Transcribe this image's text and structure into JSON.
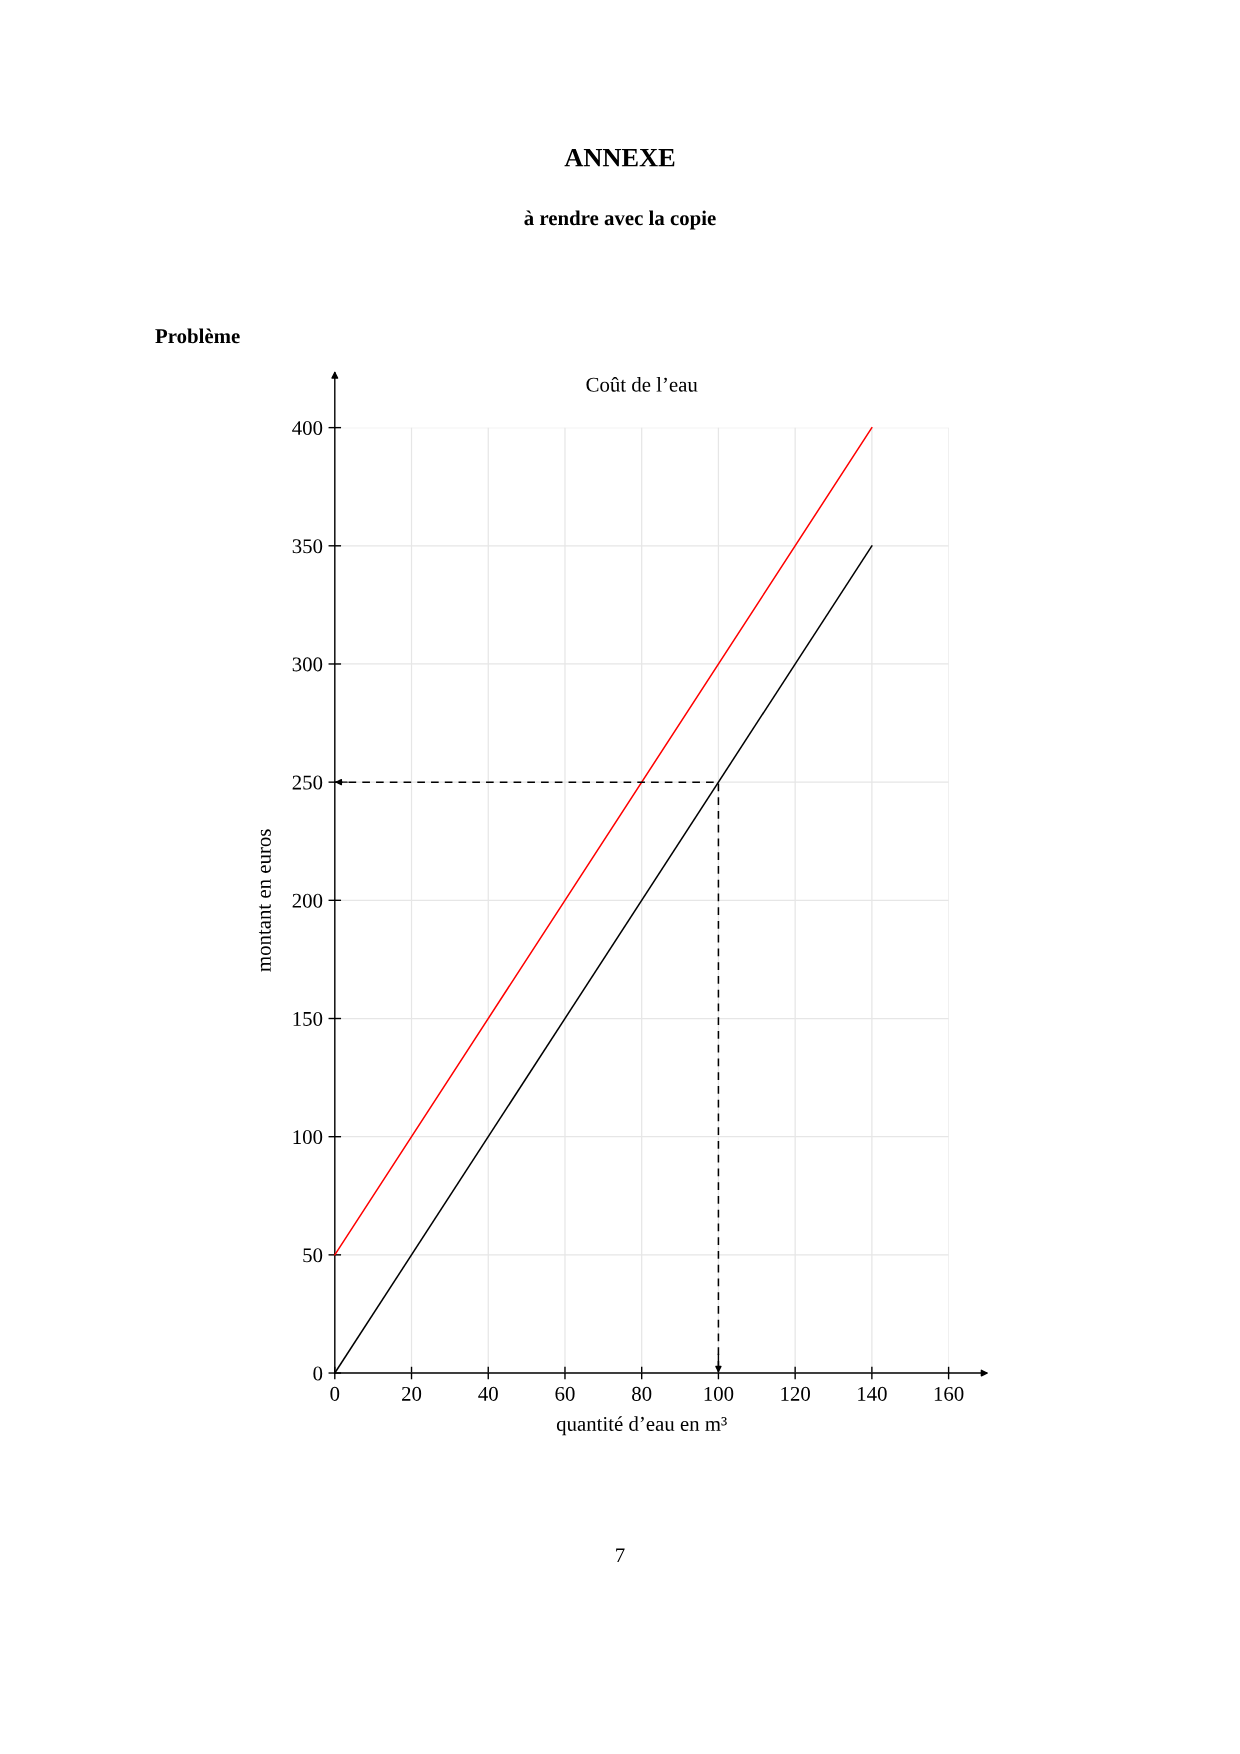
{
  "chart_data": {
    "type": "line",
    "title": "Coût de l’eau",
    "xlabel": "quantité d’eau en m³",
    "ylabel": "montant en euros",
    "annotations": [
      "ANNEXE",
      "à rendre avec la copie",
      "Problème",
      "7"
    ],
    "series": [
      {
        "color": "#ff0000",
        "x": [
          0,
          140
        ],
        "values": [
          50,
          400
        ]
      },
      {
        "color": "#000000",
        "x": [
          0,
          140
        ],
        "values": [
          0,
          350
        ]
      },
      {
        "color": "#000000",
        "x": [
          0,
          100,
          100
        ],
        "values": [
          250,
          250,
          0
        ],
        "line_style": "dashed"
      }
    ],
    "xlim": [
      0,
      160
    ],
    "ylim": [
      0,
      400
    ],
    "xticks": [
      0,
      20,
      40,
      60,
      80,
      100,
      120,
      140,
      160
    ],
    "yticks": [
      0,
      50,
      100,
      150,
      200,
      250,
      300,
      350,
      400
    ],
    "grid": true,
    "line_style": "solid"
  }
}
